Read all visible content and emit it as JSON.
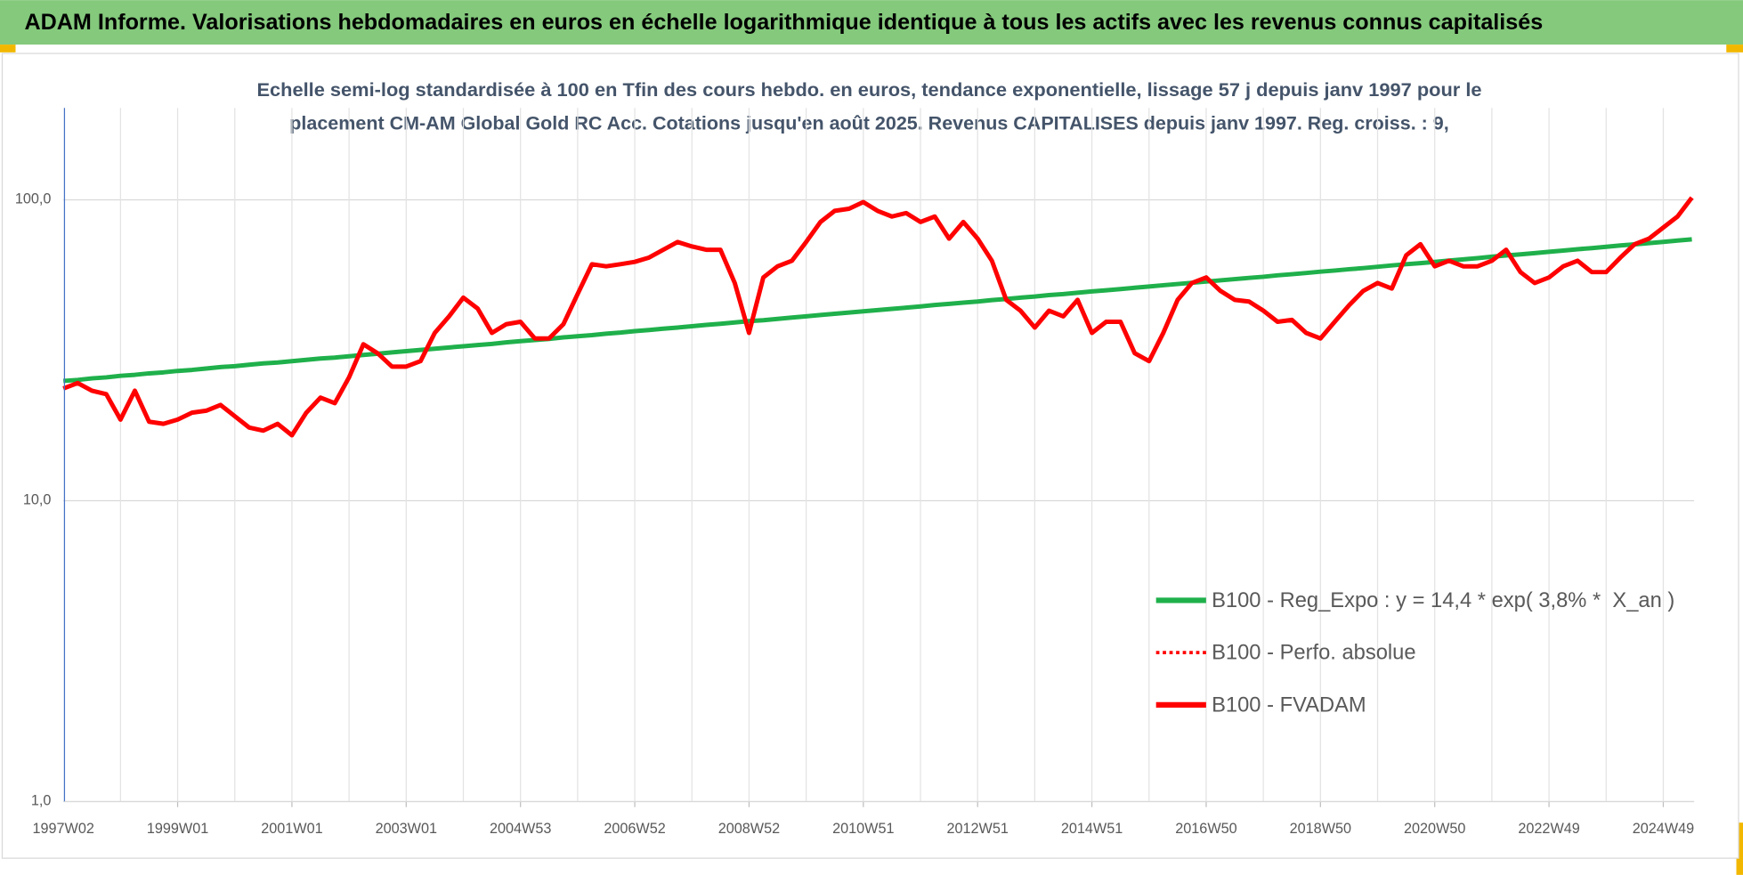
{
  "chart_data": {
    "type": "line",
    "title": "ADAM Informe. Valorisations hebdomadaires en euros en échelle logarithmique identique à tous les actifs avec les revenus connus capitalisés",
    "subtitle": [
      "Echelle semi-log standardisée à 100 en Tfin des cours hebdo. en euros, tendance exponentielle, lissage 57 j depuis janv 1997 pour le",
      "placement CM-AM Global Gold RC Acc. Cotations jusqu'en août 2025. Revenus CAPITALISES depuis janv 1997. Reg. croiss. : 9,"
    ],
    "categories": [
      "1997W02",
      null,
      null,
      null,
      null,
      null,
      null,
      null,
      "1999W01",
      null,
      null,
      null,
      null,
      null,
      null,
      null,
      "2001W01",
      null,
      null,
      null,
      null,
      null,
      null,
      null,
      "2003W01",
      null,
      null,
      null,
      null,
      null,
      null,
      null,
      "2004W53",
      null,
      null,
      null,
      null,
      null,
      null,
      null,
      "2006W52",
      null,
      null,
      null,
      null,
      null,
      null,
      null,
      "2008W52",
      null,
      null,
      null,
      null,
      null,
      null,
      null,
      "2010W51",
      null,
      null,
      null,
      null,
      null,
      null,
      null,
      "2012W51",
      null,
      null,
      null,
      null,
      null,
      null,
      null,
      "2014W51",
      null,
      null,
      null,
      null,
      null,
      null,
      null,
      "2016W50",
      null,
      null,
      null,
      null,
      null,
      null,
      null,
      "2018W50",
      null,
      null,
      null,
      null,
      null,
      null,
      null,
      "2020W50",
      null,
      null,
      null,
      null,
      null,
      null,
      null,
      "2022W49",
      null,
      null,
      null,
      null,
      null,
      null,
      null,
      "2024W49",
      null,
      null
    ],
    "series": [
      {
        "name": "B100 - Reg_Expo : y = 14,4 * exp( 3,8% *  X_an )",
        "color": "#1fb04b",
        "linestyle": "solid",
        "values": [
          25.0,
          25.2,
          25.5,
          25.7,
          26.0,
          26.2,
          26.5,
          26.7,
          27.0,
          27.2,
          27.5,
          27.8,
          28.0,
          28.3,
          28.6,
          28.8,
          29.1,
          29.4,
          29.7,
          29.9,
          30.2,
          30.5,
          30.8,
          31.1,
          31.4,
          31.7,
          32.0,
          32.3,
          32.6,
          32.9,
          33.2,
          33.6,
          33.9,
          34.2,
          34.5,
          34.9,
          35.2,
          35.5,
          35.9,
          36.2,
          36.6,
          36.9,
          37.3,
          37.6,
          38.0,
          38.4,
          38.7,
          39.1,
          39.5,
          39.8,
          40.2,
          40.6,
          41.0,
          41.4,
          41.8,
          42.2,
          42.6,
          43.0,
          43.4,
          43.8,
          44.2,
          44.7,
          45.1,
          45.5,
          45.9,
          46.4,
          46.8,
          47.3,
          47.7,
          48.2,
          48.6,
          49.1,
          49.6,
          50.0,
          50.5,
          51.0,
          51.5,
          52.0,
          52.5,
          53.0,
          53.5,
          54.0,
          54.5,
          55.0,
          55.5,
          56.1,
          56.6,
          57.1,
          57.7,
          58.2,
          58.8,
          59.3,
          59.9,
          60.5,
          61.1,
          61.6,
          62.2,
          62.8,
          63.4,
          64.0,
          64.7,
          65.3,
          65.9,
          66.5,
          67.2,
          67.8,
          68.5,
          69.1,
          69.8,
          70.5,
          71.1,
          71.8,
          72.5,
          73.2,
          73.9
        ]
      },
      {
        "name": "B100 - Perfo. absolue",
        "color": "#ff0000",
        "linestyle": "dotted",
        "values": [
          23.6,
          24.6,
          23.2,
          22.6,
          18.6,
          23.2,
          18.3,
          18.0,
          18.6,
          19.6,
          19.9,
          20.8,
          19.1,
          17.5,
          17.1,
          18.0,
          16.5,
          19.6,
          22.0,
          21.1,
          25.7,
          33.1,
          30.9,
          27.9,
          27.9,
          29.1,
          36.1,
          41.0,
          47.3,
          43.5,
          36.1,
          38.6,
          39.3,
          34.6,
          34.6,
          38.6,
          48.6,
          61.1,
          60.1,
          61.1,
          62.2,
          64.3,
          68.2,
          72.4,
          70.0,
          68.2,
          68.2,
          52.9,
          36.1,
          55.2,
          60.1,
          62.7,
          72.4,
          84.4,
          91.9,
          93.4,
          98.3,
          91.9,
          88.0,
          90.3,
          84.4,
          88.0,
          74.3,
          84.4,
          74.3,
          62.7,
          46.5,
          42.8,
          37.6,
          42.8,
          41.0,
          46.5,
          36.1,
          39.3,
          39.3,
          30.9,
          29.1,
          36.1,
          46.5,
          52.9,
          55.2,
          49.8,
          46.5,
          45.9,
          42.8,
          39.3,
          39.9,
          36.1,
          34.6,
          39.3,
          44.6,
          49.8,
          52.9,
          50.7,
          65.4,
          71.2,
          60.1,
          62.7,
          60.1,
          60.1,
          62.7,
          68.2,
          57.5,
          52.9,
          55.2,
          60.1,
          62.7,
          57.5,
          57.5,
          64.3,
          71.2,
          74.3,
          80.9,
          88.0,
          101.7
        ]
      },
      {
        "name": "B100 - FVADAM",
        "color": "#ff0000",
        "linestyle": "solid",
        "values": [
          23.6,
          24.6,
          23.2,
          22.6,
          18.6,
          23.2,
          18.3,
          18.0,
          18.6,
          19.6,
          19.9,
          20.8,
          19.1,
          17.5,
          17.1,
          18.0,
          16.5,
          19.6,
          22.0,
          21.1,
          25.7,
          33.1,
          30.9,
          27.9,
          27.9,
          29.1,
          36.1,
          41.0,
          47.3,
          43.5,
          36.1,
          38.6,
          39.3,
          34.6,
          34.6,
          38.6,
          48.6,
          61.1,
          60.1,
          61.1,
          62.2,
          64.3,
          68.2,
          72.4,
          70.0,
          68.2,
          68.2,
          52.9,
          36.1,
          55.2,
          60.1,
          62.7,
          72.4,
          84.4,
          91.9,
          93.4,
          98.3,
          91.9,
          88.0,
          90.3,
          84.4,
          88.0,
          74.3,
          84.4,
          74.3,
          62.7,
          46.5,
          42.8,
          37.6,
          42.8,
          41.0,
          46.5,
          36.1,
          39.3,
          39.3,
          30.9,
          29.1,
          36.1,
          46.5,
          52.9,
          55.2,
          49.8,
          46.5,
          45.9,
          42.8,
          39.3,
          39.9,
          36.1,
          34.6,
          39.3,
          44.6,
          49.8,
          52.9,
          50.7,
          65.4,
          71.2,
          60.1,
          62.7,
          60.1,
          60.1,
          62.7,
          68.2,
          57.5,
          52.9,
          55.2,
          60.1,
          62.7,
          57.5,
          57.5,
          64.3,
          71.2,
          74.3,
          80.9,
          88.0,
          101.7
        ]
      }
    ],
    "ylim": [
      1,
      202
    ],
    "yticks": [
      {
        "value": 1,
        "label": "1,0"
      },
      {
        "value": 10,
        "label": "10,0"
      },
      {
        "value": 100,
        "label": "100,0"
      }
    ],
    "ylog": true,
    "grid": true,
    "legend": "lower right"
  }
}
